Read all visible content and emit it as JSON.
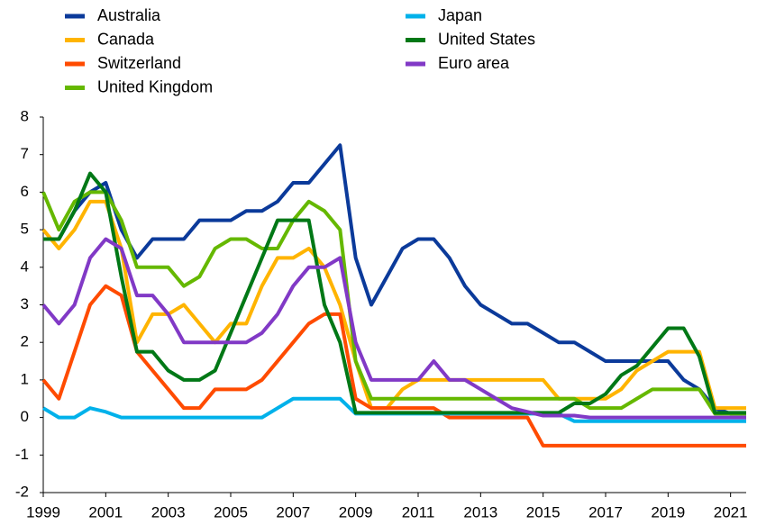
{
  "chart_data": {
    "type": "line",
    "x": [
      1999,
      1999.5,
      2000,
      2000.5,
      2001,
      2001.5,
      2002,
      2002.5,
      2003,
      2003.5,
      2004,
      2004.5,
      2005,
      2005.5,
      2006,
      2006.5,
      2007,
      2007.5,
      2008,
      2008.5,
      2009,
      2009.5,
      2010,
      2010.5,
      2011,
      2011.5,
      2012,
      2012.5,
      2013,
      2013.5,
      2014,
      2014.5,
      2015,
      2015.5,
      2016,
      2016.5,
      2017,
      2017.5,
      2018,
      2018.5,
      2019,
      2019.5,
      2020,
      2020.5,
      2021,
      2021.5
    ],
    "xlim": [
      1999,
      2021.5
    ],
    "xticks": [
      1999,
      2001,
      2003,
      2005,
      2007,
      2009,
      2011,
      2013,
      2015,
      2017,
      2019,
      2021
    ],
    "ylim": [
      -2,
      8
    ],
    "yticks": [
      -2,
      -1,
      0,
      1,
      2,
      3,
      4,
      5,
      6,
      7,
      8
    ],
    "grid": false,
    "legend": "top",
    "series": [
      {
        "name": "Australia",
        "color": "#0b3a9a",
        "values": [
          4.75,
          4.75,
          5.5,
          6.0,
          6.25,
          5.0,
          4.25,
          4.75,
          4.75,
          4.75,
          5.25,
          5.25,
          5.25,
          5.5,
          5.5,
          5.75,
          6.25,
          6.25,
          6.75,
          7.25,
          4.25,
          3.0,
          3.75,
          4.5,
          4.75,
          4.75,
          4.25,
          3.5,
          3.0,
          2.75,
          2.5,
          2.5,
          2.25,
          2.0,
          2.0,
          1.75,
          1.5,
          1.5,
          1.5,
          1.5,
          1.5,
          1.0,
          0.75,
          0.25,
          0.1,
          0.1
        ]
      },
      {
        "name": "Canada",
        "color": "#ffb400",
        "values": [
          5.0,
          4.5,
          5.0,
          5.75,
          5.75,
          4.5,
          2.0,
          2.75,
          2.75,
          3.0,
          2.5,
          2.0,
          2.5,
          2.5,
          3.5,
          4.25,
          4.25,
          4.5,
          4.0,
          3.0,
          1.5,
          0.25,
          0.25,
          0.75,
          1.0,
          1.0,
          1.0,
          1.0,
          1.0,
          1.0,
          1.0,
          1.0,
          1.0,
          0.5,
          0.5,
          0.5,
          0.5,
          0.75,
          1.25,
          1.5,
          1.75,
          1.75,
          1.75,
          0.25,
          0.25,
          0.25
        ]
      },
      {
        "name": "Switzerland",
        "color": "#ff4b00",
        "values": [
          1.0,
          0.5,
          1.75,
          3.0,
          3.5,
          3.25,
          1.75,
          1.25,
          0.75,
          0.25,
          0.25,
          0.75,
          0.75,
          0.75,
          1.0,
          1.5,
          2.0,
          2.5,
          2.75,
          2.75,
          0.5,
          0.25,
          0.25,
          0.25,
          0.25,
          0.25,
          0.0,
          0.0,
          0.0,
          0.0,
          0.0,
          0.0,
          -0.75,
          -0.75,
          -0.75,
          -0.75,
          -0.75,
          -0.75,
          -0.75,
          -0.75,
          -0.75,
          -0.75,
          -0.75,
          -0.75,
          -0.75,
          -0.75
        ]
      },
      {
        "name": "United Kingdom",
        "color": "#65b800",
        "values": [
          6.0,
          5.0,
          5.75,
          6.0,
          6.0,
          5.25,
          4.0,
          4.0,
          4.0,
          3.5,
          3.75,
          4.5,
          4.75,
          4.75,
          4.5,
          4.5,
          5.25,
          5.75,
          5.5,
          5.0,
          1.5,
          0.5,
          0.5,
          0.5,
          0.5,
          0.5,
          0.5,
          0.5,
          0.5,
          0.5,
          0.5,
          0.5,
          0.5,
          0.5,
          0.5,
          0.25,
          0.25,
          0.25,
          0.5,
          0.75,
          0.75,
          0.75,
          0.75,
          0.1,
          0.1,
          0.1
        ]
      },
      {
        "name": "Japan",
        "color": "#00b1ea",
        "values": [
          0.25,
          0.0,
          0.0,
          0.25,
          0.15,
          0.0,
          0.0,
          0.0,
          0.0,
          0.0,
          0.0,
          0.0,
          0.0,
          0.0,
          0.0,
          0.25,
          0.5,
          0.5,
          0.5,
          0.5,
          0.1,
          0.1,
          0.1,
          0.1,
          0.1,
          0.1,
          0.1,
          0.1,
          0.1,
          0.1,
          0.1,
          0.1,
          0.1,
          0.1,
          -0.1,
          -0.1,
          -0.1,
          -0.1,
          -0.1,
          -0.1,
          -0.1,
          -0.1,
          -0.1,
          -0.1,
          -0.1,
          -0.1
        ]
      },
      {
        "name": "United States",
        "color": "#007816",
        "values": [
          4.75,
          4.75,
          5.5,
          6.5,
          6.0,
          3.75,
          1.75,
          1.75,
          1.25,
          1.0,
          1.0,
          1.25,
          2.25,
          3.25,
          4.25,
          5.25,
          5.25,
          5.25,
          3.0,
          2.0,
          0.125,
          0.125,
          0.125,
          0.125,
          0.125,
          0.125,
          0.125,
          0.125,
          0.125,
          0.125,
          0.125,
          0.125,
          0.125,
          0.125,
          0.375,
          0.375,
          0.625,
          1.125,
          1.375,
          1.875,
          2.375,
          2.375,
          1.625,
          0.125,
          0.125,
          0.125
        ]
      },
      {
        "name": "Euro area",
        "color": "#8139c6",
        "values": [
          3.0,
          2.5,
          3.0,
          4.25,
          4.75,
          4.5,
          3.25,
          3.25,
          2.75,
          2.0,
          2.0,
          2.0,
          2.0,
          2.0,
          2.25,
          2.75,
          3.5,
          4.0,
          4.0,
          4.25,
          2.0,
          1.0,
          1.0,
          1.0,
          1.0,
          1.5,
          1.0,
          1.0,
          0.75,
          0.5,
          0.25,
          0.15,
          0.05,
          0.05,
          0.05,
          0.0,
          0.0,
          0.0,
          0.0,
          0.0,
          0.0,
          0.0,
          0.0,
          0.0,
          0.0,
          0.0
        ]
      }
    ]
  }
}
